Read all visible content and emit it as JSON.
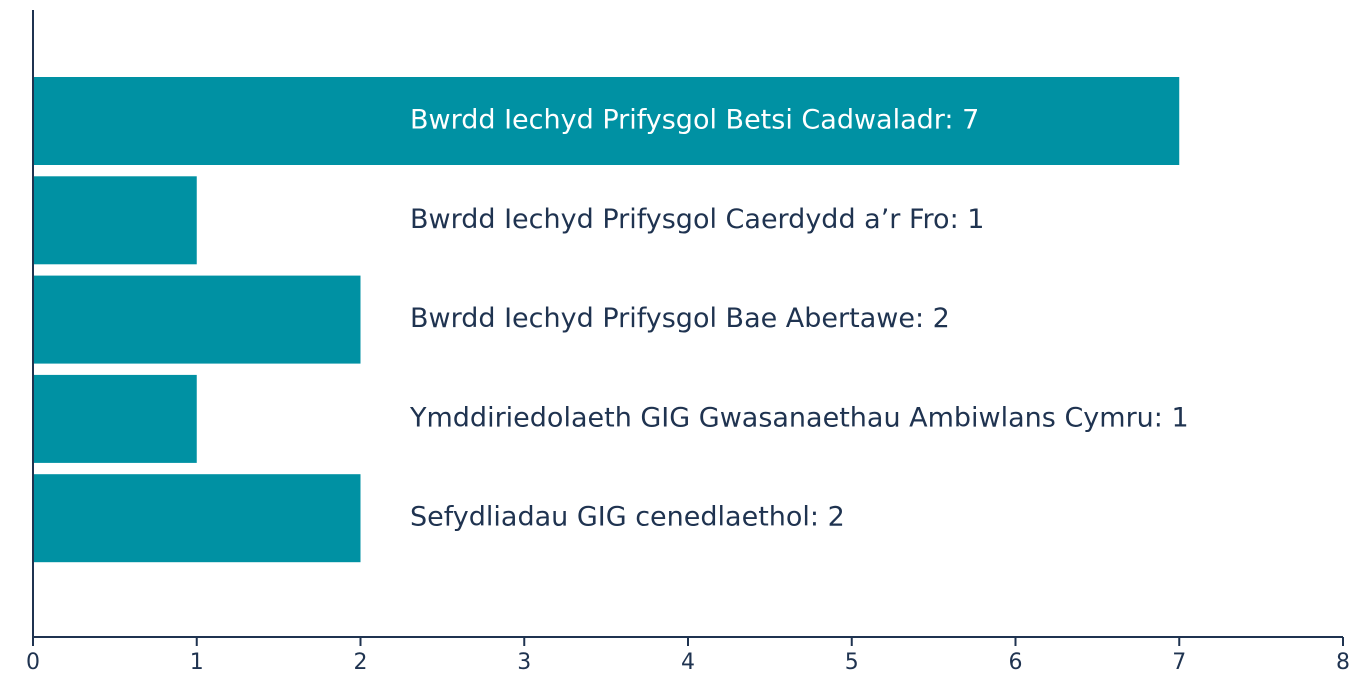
{
  "chart_data": {
    "type": "bar",
    "orientation": "horizontal",
    "values": [
      7,
      1,
      2,
      1,
      2
    ],
    "value_labels": [
      "Bwrdd Iechyd Prifysgol Betsi Cadwaladr: 7",
      "Bwrdd Iechyd Prifysgol Caerdydd a’r Fro: 1",
      "Bwrdd Iechyd Prifysgol Bae Abertawe: 2",
      "Ymddiriedolaeth GIG Gwasanaethau Ambiwlans Cymru: 1",
      "Sefydliadau GIG cenedlaethol: 2"
    ],
    "color": "#0091a3",
    "xlim": [
      0,
      8
    ],
    "xticks": [
      0,
      1,
      2,
      3,
      4,
      5,
      6,
      7,
      8
    ],
    "grid": false
  }
}
